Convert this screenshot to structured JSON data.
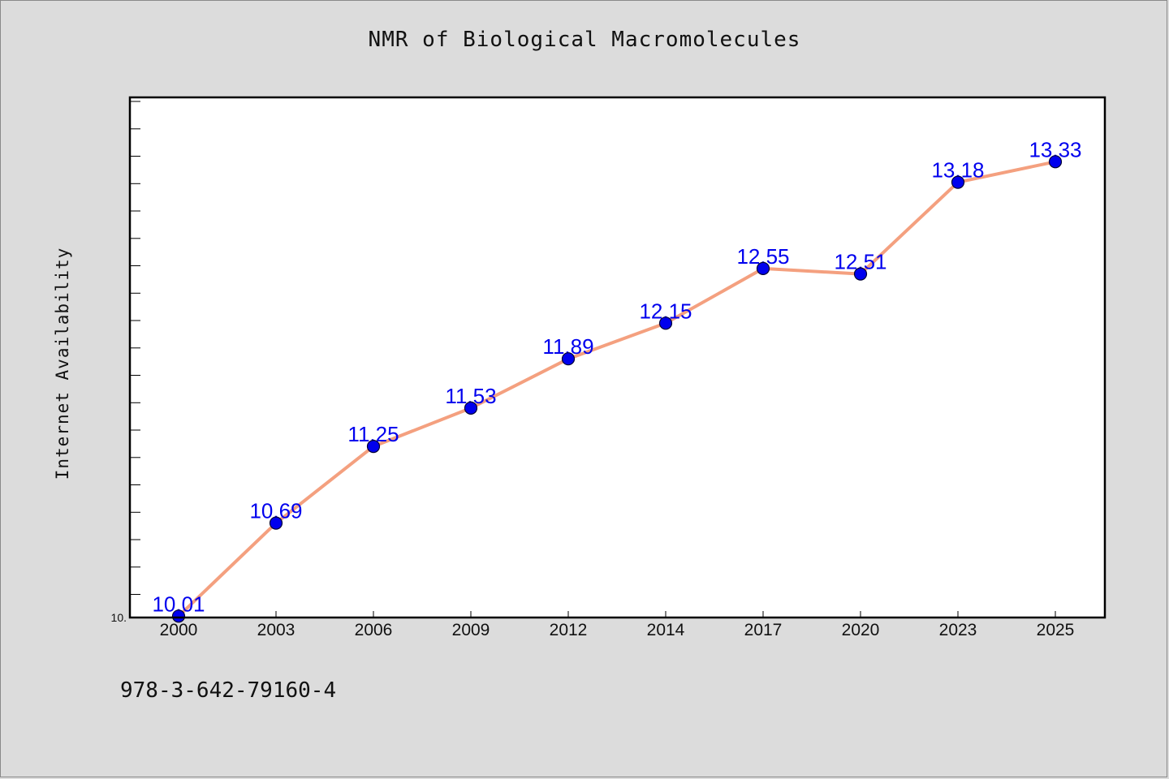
{
  "footer": {
    "code": "978-3-642-79160-4"
  },
  "chart_data": {
    "type": "line",
    "title": "NMR of Biological Macromolecules",
    "xlabel": "",
    "ylabel": "Internet Availability",
    "categories": [
      "2000",
      "2003",
      "2006",
      "2009",
      "2012",
      "2014",
      "2017",
      "2020",
      "2023",
      "2025"
    ],
    "series": [
      {
        "values": [
          10.01,
          10.69,
          11.25,
          11.53,
          11.89,
          12.15,
          12.55,
          12.51,
          13.18,
          13.33
        ]
      }
    ],
    "data_labels": [
      "10.01",
      "10.69",
      "11.25",
      "11.53",
      "11.89",
      "12.15",
      "12.55",
      "12.51",
      "13.18",
      "13.33"
    ],
    "y_tick_labels": [
      "10."
    ],
    "ylim": [
      10.0,
      13.8
    ],
    "grid": false,
    "colors": {
      "line": "#f4a07f",
      "marker": "#0000ee",
      "label": "#0000ee",
      "background": "#dcdcdc",
      "plot_background": "#ffffff"
    }
  }
}
